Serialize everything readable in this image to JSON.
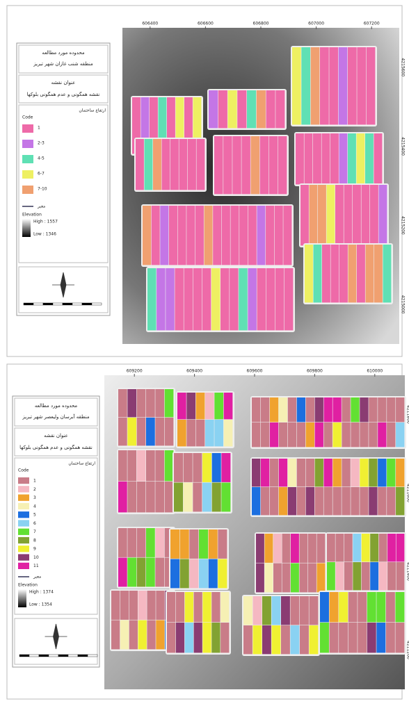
{
  "panels": [
    {
      "legend": {
        "study_heading": "محدوده مورد مطالعه",
        "study_area": "منطقه شنب غازان شهر تبریز",
        "title_heading": "عنوان نقشه",
        "map_title": "نقشه همگونی و عدم همگونی بلوکها",
        "field": "ارتفاع ساختمان",
        "unit": "Code",
        "items": [
          {
            "label": "1",
            "color": "#ee6aa8"
          },
          {
            "label": "2-3",
            "color": "#c476e6"
          },
          {
            "label": "4-5",
            "color": "#5fe0b4"
          },
          {
            "label": "6-7",
            "color": "#eef062"
          },
          {
            "label": "7-10",
            "color": "#f0a070"
          }
        ],
        "road": "معبر",
        "elevation": "Elevation",
        "high": "High : 1557",
        "low": "Low : 1346"
      },
      "x_ticks": [
        "606400",
        "606600",
        "606800",
        "607000",
        "607200"
      ],
      "y_ticks": [
        "4215600",
        "4215400",
        "4215200",
        "4215000"
      ]
    },
    {
      "legend": {
        "study_heading": "محدوده مورد مطالعه",
        "study_area": "منطقه آبرسان ولیعصر شهر تبریز",
        "title_heading": "عنوان نقشه",
        "map_title": "نقشه همگونی و عدم همگونی بلوکها",
        "field": "ارتفاع ساختمان",
        "unit": "Code",
        "items": [
          {
            "label": "1",
            "color": "#c97c88"
          },
          {
            "label": "2",
            "color": "#f5b8c2"
          },
          {
            "label": "3",
            "color": "#f0a22e"
          },
          {
            "label": "4",
            "color": "#f6f0b4"
          },
          {
            "label": "5",
            "color": "#1c6fe0"
          },
          {
            "label": "6",
            "color": "#8ad2f2"
          },
          {
            "label": "7",
            "color": "#62e032"
          },
          {
            "label": "8",
            "color": "#82a232"
          },
          {
            "label": "9",
            "color": "#f0f032"
          },
          {
            "label": "10",
            "color": "#8a3c72"
          },
          {
            "label": "11",
            "color": "#e020a2"
          }
        ],
        "road": "معبر",
        "elevation": "Elevation",
        "high": "High : 1374",
        "low": "Low : 1354"
      },
      "x_ticks": [
        "609200",
        "609400",
        "609600",
        "609800",
        "610000"
      ],
      "y_ticks": [
        "4211800",
        "4211600",
        "4211400",
        "4211200"
      ]
    }
  ]
}
